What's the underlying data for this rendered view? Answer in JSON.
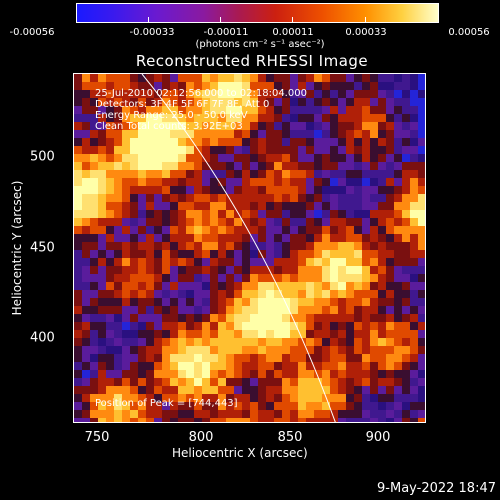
{
  "colorbar": {
    "tick_labels": [
      "-0.00056",
      "-0.00033",
      "-0.00011",
      "0.00011",
      "0.00033",
      "0.00056"
    ],
    "units": "(photons cm⁻² s⁻¹ asec⁻²)",
    "colormap": [
      "#1a1aff",
      "#6a1ad0",
      "#aa1a50",
      "#cc2010",
      "#ff9000",
      "#ffffcc"
    ]
  },
  "title": "Reconstructed RHESSI Image",
  "annotations": {
    "time_range": "25-Jul-2010 02:12:56.000 to 02:18:04.000",
    "detectors": "Detectors: 3F 4F 5F 6F 7F 8F, Att 0",
    "energy_range": "Energy Range: 25.0 - 50.0 keV",
    "clean_counts": "Clean    Total counts: 3.92E+03",
    "peak_position": "Position of Peak = [744,443]"
  },
  "axes": {
    "xlabel": "Heliocentric X (arcsec)",
    "ylabel": "Heliocentric Y (arcsec)",
    "x_ticks": [
      "750",
      "800",
      "850",
      "900"
    ],
    "y_ticks": [
      "500",
      "450",
      "400"
    ],
    "x_range": [
      731,
      929
    ],
    "y_range": [
      354,
      552
    ]
  },
  "footer": {
    "timestamp": "9-May-2022 18:47"
  }
}
